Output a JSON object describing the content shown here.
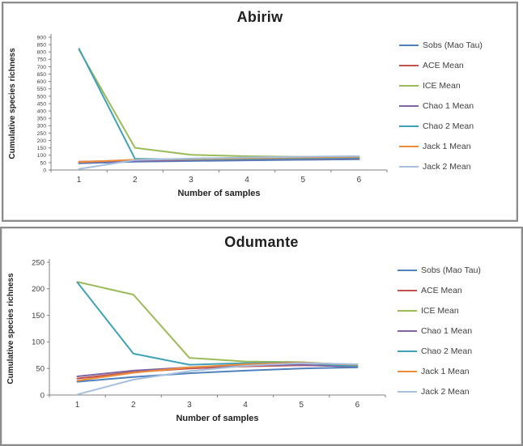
{
  "chart_data": [
    {
      "type": "line",
      "title": "Abiriw",
      "xlabel": "Number of samples",
      "ylabel": "Cumulative species richness",
      "x": [
        1,
        2,
        3,
        4,
        5,
        6
      ],
      "ylim": [
        0,
        900
      ],
      "ystep": 50,
      "grid": false,
      "legend_position": "right",
      "series": [
        {
          "name": "Sobs (Mao Tau)",
          "color": "#4F81BD",
          "values": [
            45,
            56,
            61,
            65,
            69,
            73
          ]
        },
        {
          "name": "ACE Mean",
          "color": "#C0504D",
          "values": [
            56,
            64,
            67,
            71,
            75,
            78
          ]
        },
        {
          "name": "ICE Mean",
          "color": "#9BBB59",
          "values": [
            815,
            150,
            103,
            93,
            89,
            87
          ]
        },
        {
          "name": "Chao 1 Mean",
          "color": "#8064A2",
          "values": [
            50,
            62,
            65,
            70,
            74,
            77
          ]
        },
        {
          "name": "Chao 2 Mean",
          "color": "#3FA2B8",
          "values": [
            822,
            76,
            70,
            75,
            79,
            83
          ]
        },
        {
          "name": "Jack 1 Mean",
          "color": "#ED8C38",
          "values": [
            54,
            69,
            75,
            80,
            85,
            89
          ]
        },
        {
          "name": "Jack 2 Mean",
          "color": "#A7BFDE",
          "values": [
            7,
            67,
            78,
            85,
            90,
            94
          ]
        }
      ]
    },
    {
      "type": "line",
      "title": "Odumante",
      "xlabel": "Number of samples",
      "ylabel": "Cumulative  species richness",
      "x": [
        1,
        2,
        3,
        4,
        5,
        6
      ],
      "ylim": [
        0,
        250
      ],
      "ystep": 50,
      "grid": false,
      "legend_position": "right",
      "series": [
        {
          "name": "Sobs (Mao Tau)",
          "color": "#4F81BD",
          "values": [
            25,
            34,
            41,
            46,
            50,
            52
          ]
        },
        {
          "name": "ACE Mean",
          "color": "#C0504D",
          "values": [
            31,
            43,
            50,
            54,
            56,
            54
          ]
        },
        {
          "name": "ICE Mean",
          "color": "#9BBB59",
          "values": [
            213,
            189,
            70,
            63,
            62,
            56
          ]
        },
        {
          "name": "Chao 1 Mean",
          "color": "#8064A2",
          "values": [
            35,
            46,
            52,
            56,
            57,
            53
          ]
        },
        {
          "name": "Chao 2 Mean",
          "color": "#3FA2B8",
          "values": [
            212,
            78,
            57,
            60,
            61,
            54
          ]
        },
        {
          "name": "Jack 1 Mean",
          "color": "#ED8C38",
          "values": [
            27,
            42,
            52,
            58,
            61,
            57
          ]
        },
        {
          "name": "Jack 2 Mean",
          "color": "#A7BFDE",
          "values": [
            1,
            29,
            45,
            55,
            60,
            58
          ]
        }
      ]
    }
  ]
}
